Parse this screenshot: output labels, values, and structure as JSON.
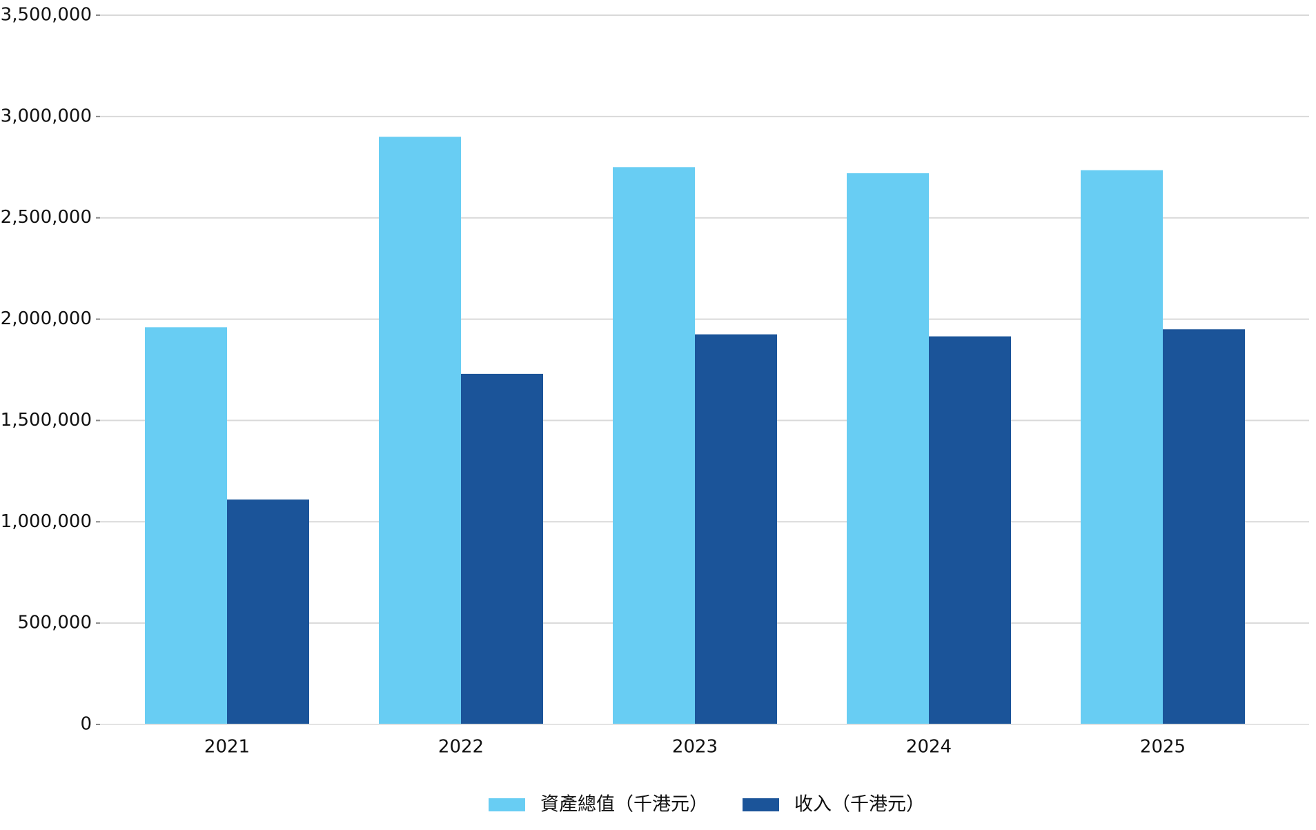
{
  "chart_data": {
    "type": "bar",
    "categories": [
      "2021",
      "2022",
      "2023",
      "2024",
      "2025"
    ],
    "series": [
      {
        "name": "資產總值（千港元）",
        "color": "#68CDF3",
        "values": [
          1960000,
          2900000,
          2750000,
          2720000,
          2735000
        ]
      },
      {
        "name": "收入（千港元）",
        "color": "#1B5499",
        "values": [
          1110000,
          1730000,
          1925000,
          1915000,
          1950000
        ]
      }
    ],
    "y_ticks": [
      "0",
      "500,000",
      "1,000,000",
      "1,500,000",
      "2,000,000",
      "2,500,000",
      "3,000,000",
      "3,500,000"
    ],
    "ylim": [
      0,
      3500000
    ],
    "grid": true,
    "legend_position": "bottom-center",
    "title": "",
    "xlabel": "",
    "ylabel": ""
  }
}
